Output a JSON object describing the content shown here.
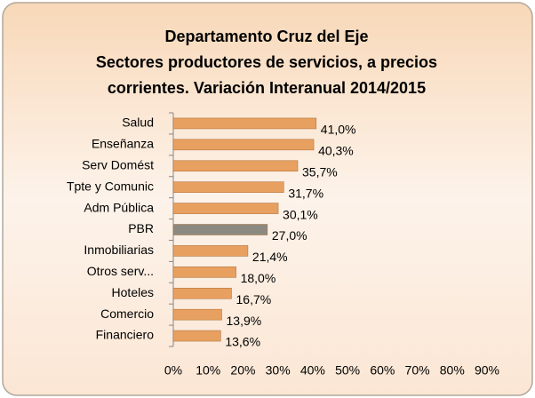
{
  "chart_data": {
    "type": "bar",
    "orientation": "horizontal",
    "title": [
      "Departamento Cruz del Eje",
      "Sectores productores de servicios, a precios",
      "corrientes. Variación Interanual 2014/2015"
    ],
    "categories": [
      "Salud",
      "Enseñanza",
      "Serv Domést",
      "Tpte y Comunic",
      "Adm Pública",
      "PBR",
      "Inmobiliarias",
      "Otros serv...",
      "Hoteles",
      "Comercio",
      "Financiero"
    ],
    "values": [
      41.0,
      40.3,
      35.7,
      31.7,
      30.1,
      27.0,
      21.4,
      18.0,
      16.7,
      13.9,
      13.6
    ],
    "value_labels": [
      "41,0%",
      "40,3%",
      "35,7%",
      "31,7%",
      "30,1%",
      "27,0%",
      "21,4%",
      "18,0%",
      "16,7%",
      "13,9%",
      "13,6%"
    ],
    "colors": [
      "#e8a060",
      "#e8a060",
      "#e8a060",
      "#e8a060",
      "#e8a060",
      "#8c8a80",
      "#e8a060",
      "#e8a060",
      "#e8a060",
      "#e8a060",
      "#e8a060"
    ],
    "xlim": [
      0,
      90
    ],
    "xticks": [
      {
        "value": 0,
        "label": "0%"
      },
      {
        "value": 10,
        "label": "10%"
      },
      {
        "value": 20,
        "label": "20%"
      },
      {
        "value": 30,
        "label": "30%"
      },
      {
        "value": 40,
        "label": "40%"
      },
      {
        "value": 50,
        "label": "50%"
      },
      {
        "value": 60,
        "label": "60%"
      },
      {
        "value": 70,
        "label": "70%"
      },
      {
        "value": 80,
        "label": "80%"
      },
      {
        "value": 90,
        "label": "90%"
      }
    ],
    "grid": false
  }
}
